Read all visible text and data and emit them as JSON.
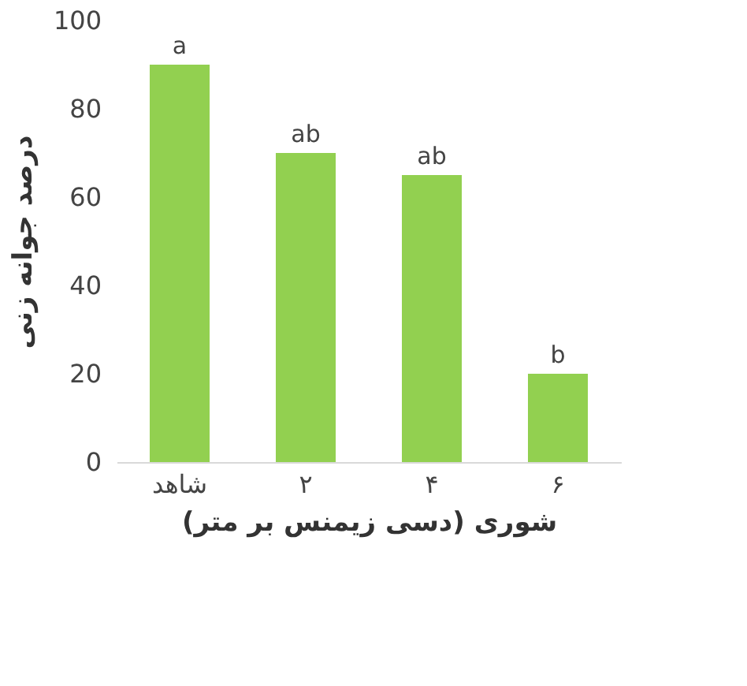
{
  "chart_data": {
    "type": "bar",
    "xlabel": "شوری (دسی زیمنس بر متر)",
    "ylabel": "درصد جوانه زنی",
    "categories": [
      "شاهد",
      "۲",
      "۴",
      "۶"
    ],
    "values": [
      90,
      70,
      65,
      20
    ],
    "value_labels": [
      "a",
      "ab",
      "ab",
      "b"
    ],
    "color": "#92d050",
    "ylim": [
      0,
      100
    ],
    "yticks": [
      0,
      20,
      40,
      60,
      80,
      100
    ],
    "grid": false
  }
}
